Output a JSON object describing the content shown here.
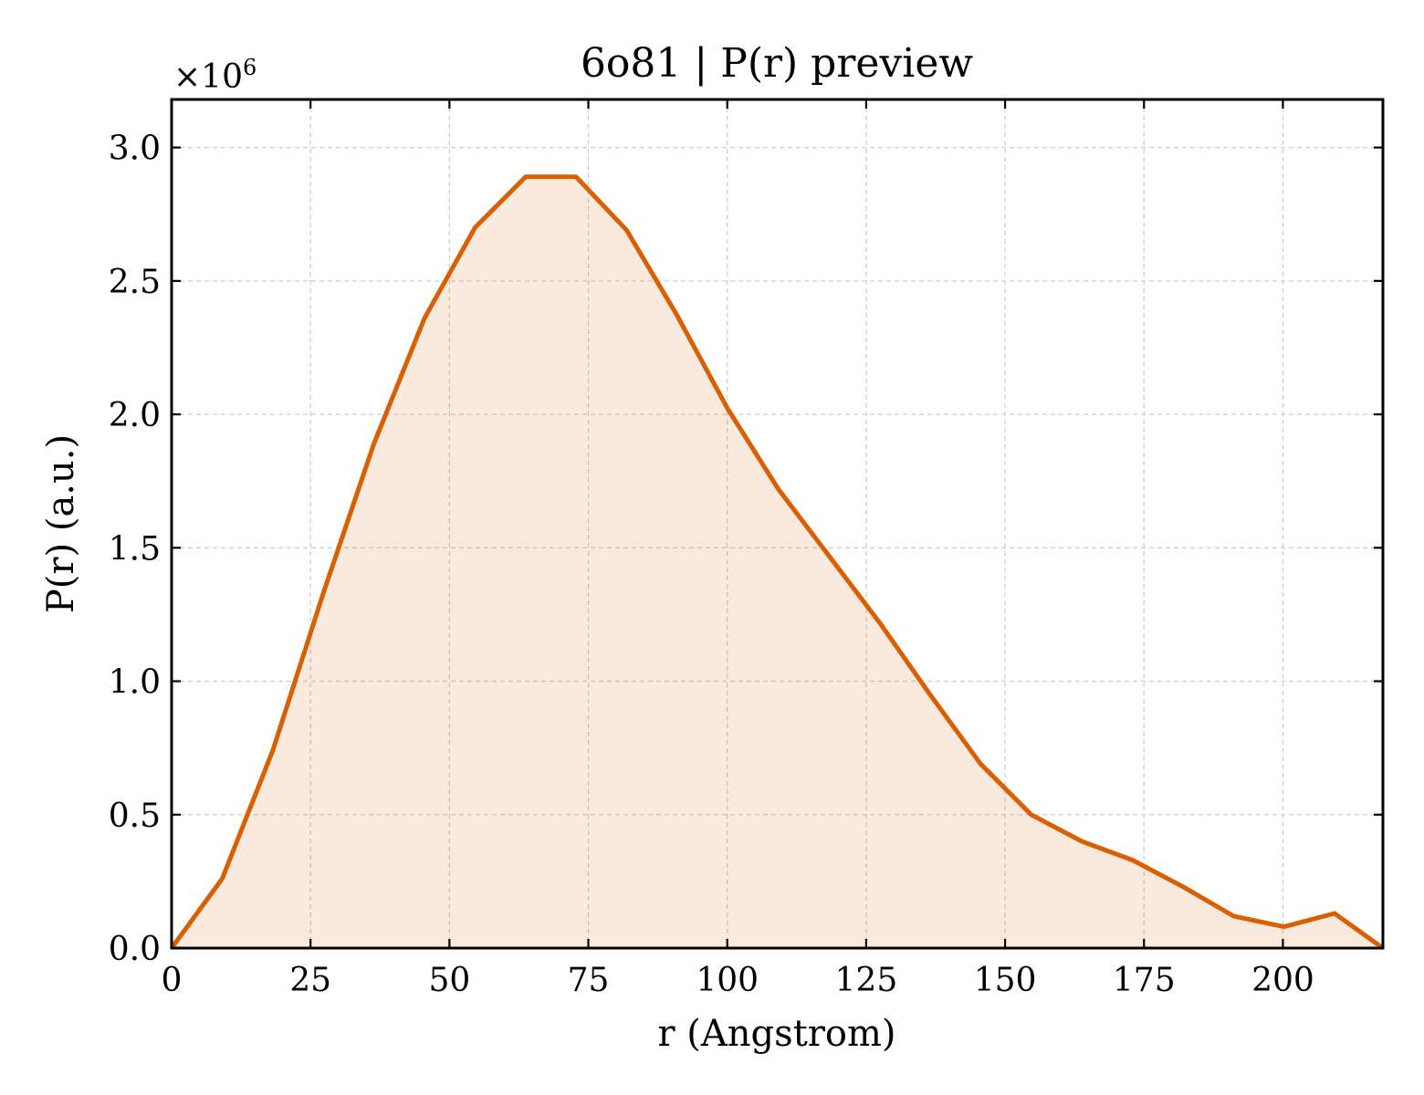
{
  "chart_data": {
    "type": "area",
    "title": "6o81 | P(r) preview",
    "xlabel": "r (Angstrom)",
    "ylabel": "P(r) (a.u.)",
    "y_scale_multiplier": {
      "base": "×10",
      "exponent": "6"
    },
    "xlim": [
      0,
      218
    ],
    "ylim": [
      0,
      3.18
    ],
    "x_ticks": [
      0,
      25,
      50,
      75,
      100,
      125,
      150,
      175,
      200
    ],
    "x_tick_labels": [
      "0",
      "25",
      "50",
      "75",
      "100",
      "125",
      "150",
      "175",
      "200"
    ],
    "y_ticks": [
      0.0,
      0.5,
      1.0,
      1.5,
      2.0,
      2.5,
      3.0
    ],
    "y_tick_labels": [
      "0.0",
      "0.5",
      "1.0",
      "1.5",
      "2.0",
      "2.5",
      "3.0"
    ],
    "grid": true,
    "line_color": "#d95f02",
    "fill_color": "#d95f02",
    "fill_opacity": 0.13,
    "series": [
      {
        "x": [
          0,
          9.1,
          18.2,
          27.3,
          36.4,
          45.5,
          54.6,
          63.7,
          72.8,
          81.9,
          91.0,
          100.1,
          109.2,
          118.3,
          127.4,
          136.5,
          145.6,
          154.7,
          163.8,
          172.9,
          182.0,
          191.1,
          200.2,
          209.3,
          218.0
        ],
        "y": [
          0.0,
          0.26,
          0.74,
          1.33,
          1.89,
          2.36,
          2.7,
          2.89,
          2.89,
          2.69,
          2.37,
          2.02,
          1.72,
          1.47,
          1.22,
          0.95,
          0.69,
          0.5,
          0.4,
          0.33,
          0.23,
          0.12,
          0.08,
          0.13,
          0.0
        ]
      }
    ]
  }
}
